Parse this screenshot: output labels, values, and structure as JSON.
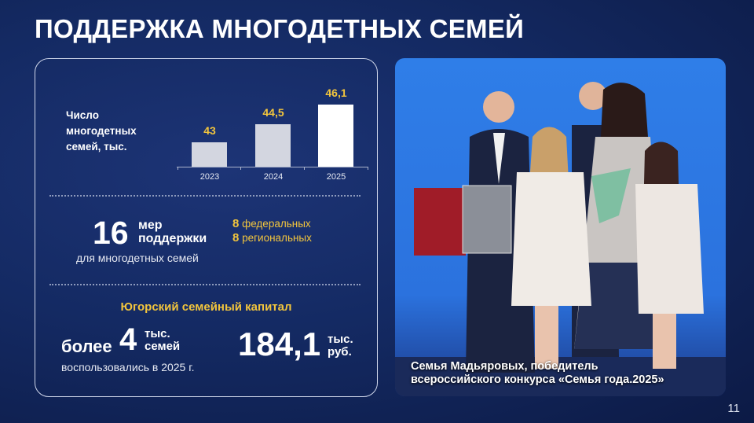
{
  "slide": {
    "title": "ПОДДЕРЖКА МНОГОДЕТНЫХ СЕМЕЙ",
    "page_number": "11"
  },
  "chart_data": {
    "type": "bar",
    "title": "Число многодетных семей, тыс.",
    "categories": [
      "2023",
      "2024",
      "2025"
    ],
    "values": [
      43,
      44.5,
      46.1
    ],
    "value_labels": [
      "43",
      "44,5",
      "46,1"
    ],
    "ylim": [
      41,
      46.5
    ],
    "grid": false,
    "colors": [
      "#d3d6e0",
      "#d3d6e0",
      "#ffffff"
    ]
  },
  "measures": {
    "count": "16",
    "label_line1": "мер",
    "label_line2": "поддержки",
    "subtitle": "для многодетных семей",
    "federal_count": "8",
    "federal_label": "федеральных",
    "regional_count": "8",
    "regional_label": "региональных"
  },
  "capital": {
    "title": "Югорский семейный капитал",
    "prefix": "более",
    "families_count": "4",
    "families_unit1": "тыс.",
    "families_unit2": "семей",
    "used_text": "воспользовались в 2025 г.",
    "amount": "184,1",
    "amount_unit1": "тыс.",
    "amount_unit2": "руб."
  },
  "photo": {
    "caption_line1": "Семья Мадьяровых, победитель",
    "caption_line2": "всероссийского конкурса «Семья года.2025»"
  },
  "colors": {
    "accent": "#f2c53d",
    "background": "#142a63"
  }
}
